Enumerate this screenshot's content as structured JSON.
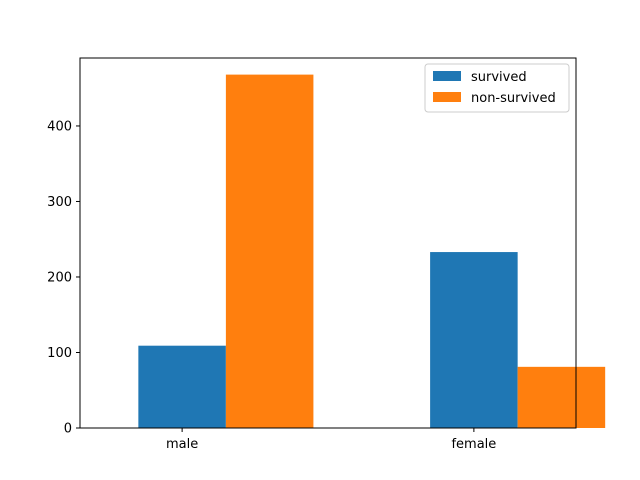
{
  "chart_data": {
    "type": "bar",
    "title": "",
    "xlabel": "",
    "ylabel": "",
    "categories": [
      "male",
      "female"
    ],
    "series": [
      {
        "name": "survived",
        "values": [
          109,
          233
        ],
        "color": "#1f77b4"
      },
      {
        "name": "non-survived",
        "values": [
          468,
          81
        ],
        "color": "#ff7f0e"
      }
    ],
    "ylim": [
      0,
      490
    ],
    "yticks": [
      0,
      100,
      200,
      300,
      400
    ],
    "legend": "top-right",
    "grid": false
  }
}
